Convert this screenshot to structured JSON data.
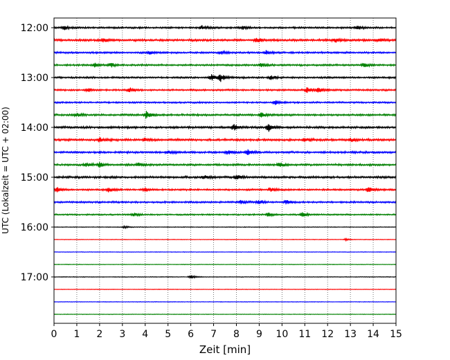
{
  "chart_data": {
    "type": "line",
    "xlabel": "Zeit  [min]",
    "ylabel": "UTC (Lokalzeit = UTC + 02:00)",
    "xlim": [
      0,
      15
    ],
    "x_ticks": [
      "0",
      "1",
      "2",
      "3",
      "4",
      "5",
      "6",
      "7",
      "8",
      "9",
      "10",
      "11",
      "12",
      "13",
      "14",
      "15"
    ],
    "y_tick_labels": [
      {
        "label": "12:00",
        "trace": 0
      },
      {
        "label": "13:00",
        "trace": 4
      },
      {
        "label": "14:00",
        "trace": 8
      },
      {
        "label": "15:00",
        "trace": 12
      },
      {
        "label": "16:00",
        "trace": 16
      },
      {
        "label": "17:00",
        "trace": 20
      }
    ],
    "grid": "vertical dotted",
    "trace_interval_minutes": 15,
    "start_time": "12:00",
    "trace_colors": [
      "#000000",
      "#ff0000",
      "#0000ff",
      "#008000"
    ],
    "traces": [
      {
        "start": "12:00",
        "color": "#000000",
        "noise": 1.0,
        "events": [
          {
            "t": 0.45,
            "amp": 3
          },
          {
            "t": 6.5,
            "amp": 2.5
          },
          {
            "t": 8.3,
            "amp": 2.5
          },
          {
            "t": 13.3,
            "amp": 3
          }
        ]
      },
      {
        "start": "12:15",
        "color": "#ff0000",
        "noise": 1.2,
        "events": [
          {
            "t": 2.2,
            "amp": 3
          },
          {
            "t": 8.9,
            "amp": 3
          },
          {
            "t": 12.3,
            "amp": 3
          },
          {
            "t": 14.2,
            "amp": 2.5
          }
        ]
      },
      {
        "start": "12:30",
        "color": "#0000ff",
        "noise": 1.0,
        "events": [
          {
            "t": 4.2,
            "amp": 2.5
          },
          {
            "t": 7.3,
            "amp": 2.5
          },
          {
            "t": 9.3,
            "amp": 2.5
          }
        ]
      },
      {
        "start": "12:45",
        "color": "#008000",
        "noise": 1.0,
        "events": [
          {
            "t": 1.8,
            "amp": 2.5
          },
          {
            "t": 2.5,
            "amp": 3
          },
          {
            "t": 9.1,
            "amp": 3
          },
          {
            "t": 13.6,
            "amp": 3
          }
        ]
      },
      {
        "start": "13:00",
        "color": "#000000",
        "noise": 1.0,
        "events": [
          {
            "t": 6.9,
            "amp": 4
          },
          {
            "t": 7.3,
            "amp": 5
          },
          {
            "t": 9.5,
            "amp": 3
          }
        ]
      },
      {
        "start": "13:15",
        "color": "#ff0000",
        "noise": 1.0,
        "events": [
          {
            "t": 1.5,
            "amp": 3
          },
          {
            "t": 3.3,
            "amp": 3
          },
          {
            "t": 11.1,
            "amp": 4
          },
          {
            "t": 11.6,
            "amp": 3.5
          }
        ]
      },
      {
        "start": "13:30",
        "color": "#0000ff",
        "noise": 0.9,
        "events": [
          {
            "t": 9.7,
            "amp": 3
          }
        ]
      },
      {
        "start": "13:45",
        "color": "#008000",
        "noise": 1.1,
        "events": [
          {
            "t": 1.0,
            "amp": 2.5
          },
          {
            "t": 4.05,
            "amp": 5
          },
          {
            "t": 9.1,
            "amp": 3
          }
        ]
      },
      {
        "start": "14:00",
        "color": "#000000",
        "noise": 1.2,
        "events": [
          {
            "t": 7.9,
            "amp": 4
          },
          {
            "t": 9.4,
            "amp": 6
          }
        ]
      },
      {
        "start": "14:15",
        "color": "#ff0000",
        "noise": 1.2,
        "events": [
          {
            "t": 2.0,
            "amp": 3
          },
          {
            "t": 4.0,
            "amp": 2.5
          },
          {
            "t": 11.0,
            "amp": 2.5
          },
          {
            "t": 13.0,
            "amp": 2.5
          }
        ]
      },
      {
        "start": "14:30",
        "color": "#0000ff",
        "noise": 1.1,
        "events": [
          {
            "t": 5.0,
            "amp": 3
          },
          {
            "t": 7.6,
            "amp": 3
          },
          {
            "t": 8.5,
            "amp": 4
          }
        ]
      },
      {
        "start": "14:45",
        "color": "#008000",
        "noise": 1.1,
        "events": [
          {
            "t": 1.4,
            "amp": 3
          },
          {
            "t": 2.0,
            "amp": 3.5
          },
          {
            "t": 3.7,
            "amp": 2.5
          },
          {
            "t": 9.9,
            "amp": 3
          }
        ]
      },
      {
        "start": "15:00",
        "color": "#000000",
        "noise": 1.2,
        "events": [
          {
            "t": 6.6,
            "amp": 3
          },
          {
            "t": 8.0,
            "amp": 4.5
          }
        ]
      },
      {
        "start": "15:15",
        "color": "#ff0000",
        "noise": 1.0,
        "events": [
          {
            "t": 0.15,
            "amp": 3
          },
          {
            "t": 2.4,
            "amp": 3
          },
          {
            "t": 4.0,
            "amp": 3
          },
          {
            "t": 9.5,
            "amp": 3
          },
          {
            "t": 13.8,
            "amp": 4
          }
        ]
      },
      {
        "start": "15:30",
        "color": "#0000ff",
        "noise": 1.0,
        "events": [
          {
            "t": 8.2,
            "amp": 2.5
          },
          {
            "t": 9.0,
            "amp": 2.5
          },
          {
            "t": 10.2,
            "amp": 3
          }
        ]
      },
      {
        "start": "15:45",
        "color": "#008000",
        "noise": 0.8,
        "events": [
          {
            "t": 3.5,
            "amp": 2.5
          },
          {
            "t": 9.4,
            "amp": 3
          },
          {
            "t": 10.9,
            "amp": 3
          }
        ]
      },
      {
        "start": "16:00",
        "color": "#000000",
        "noise": 0.35,
        "events": [
          {
            "t": 3.1,
            "amp": 1.5
          }
        ]
      },
      {
        "start": "16:15",
        "color": "#ff0000",
        "noise": 0.3,
        "events": [
          {
            "t": 12.8,
            "amp": 1.2
          }
        ]
      },
      {
        "start": "16:30",
        "color": "#0000ff",
        "noise": 0.3,
        "events": []
      },
      {
        "start": "16:45",
        "color": "#008000",
        "noise": 0.3,
        "events": []
      },
      {
        "start": "17:00",
        "color": "#000000",
        "noise": 0.35,
        "events": [
          {
            "t": 6.0,
            "amp": 2.5
          }
        ]
      },
      {
        "start": "17:15",
        "color": "#ff0000",
        "noise": 0.3,
        "events": []
      },
      {
        "start": "17:30",
        "color": "#0000ff",
        "noise": 0.3,
        "events": []
      },
      {
        "start": "17:45",
        "color": "#008000",
        "noise": 0.3,
        "events": []
      }
    ]
  }
}
